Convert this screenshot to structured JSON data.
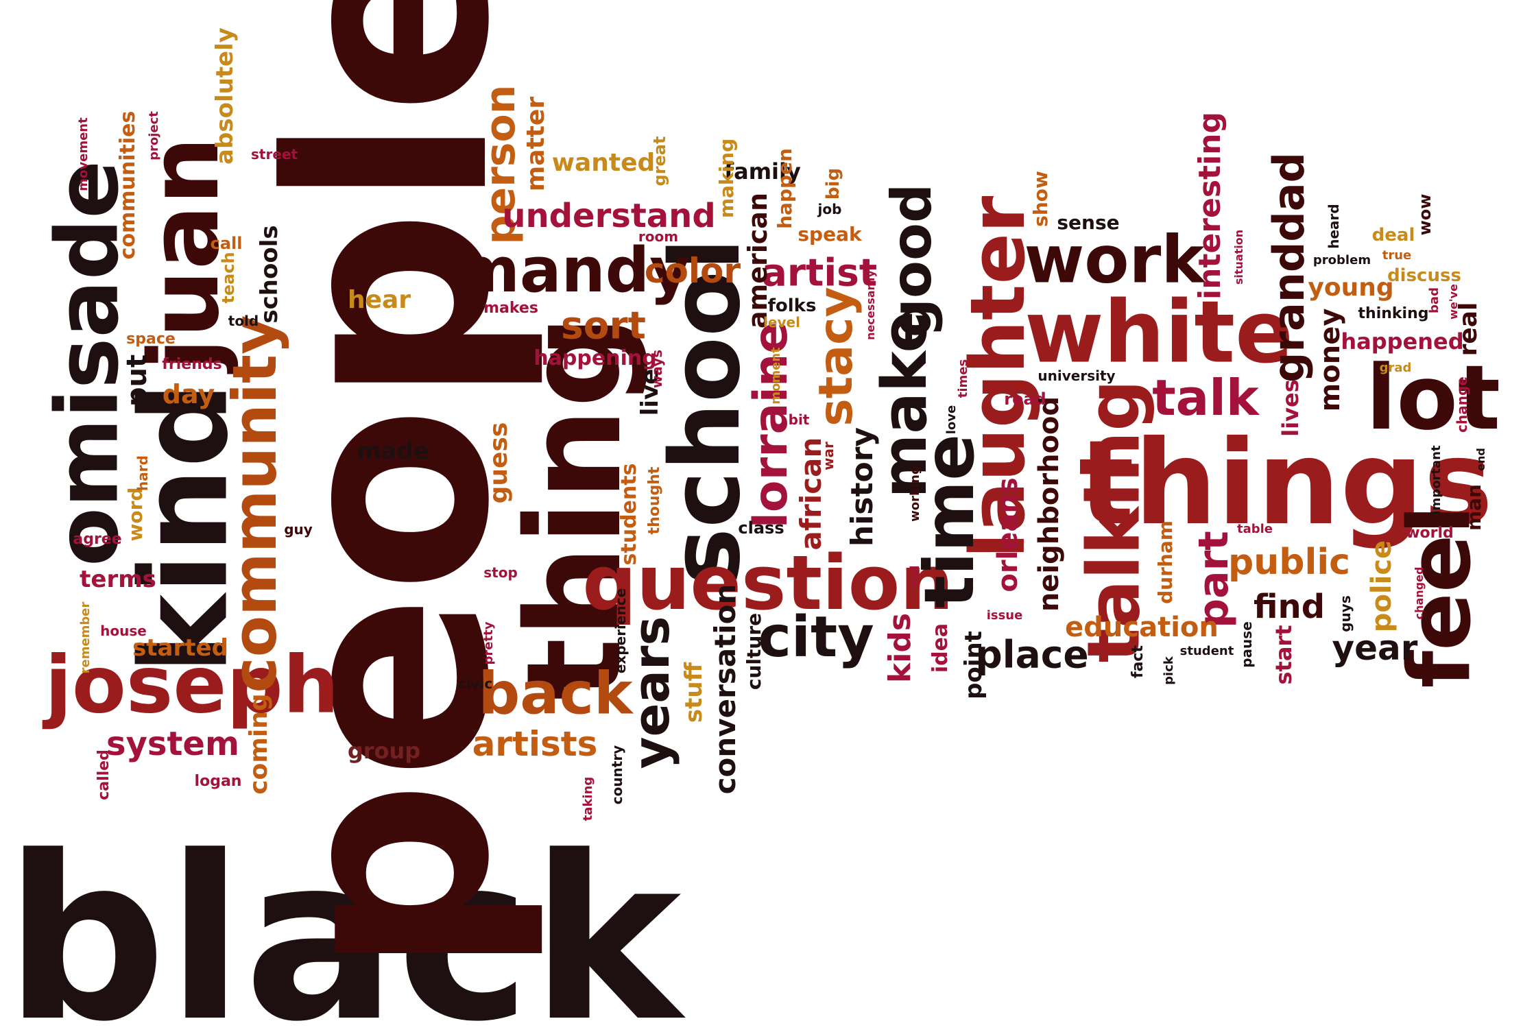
{
  "palette": {
    "dark": "#3d0808",
    "maroon": "#580c0c",
    "brown": "#722020",
    "red": "#9b1c1c",
    "crimson": "#a3123a",
    "rust": "#b34a10",
    "orange": "#c25d12",
    "gold": "#c88a1a",
    "black": "#1e1010"
  },
  "words": [
    {
      "text": "black",
      "color": "black"
    },
    {
      "text": "people",
      "color": "dark"
    },
    {
      "text": "kind",
      "color": "black"
    },
    {
      "text": "juan",
      "color": "dark"
    },
    {
      "text": "omisade",
      "color": "black"
    },
    {
      "text": "joseph",
      "color": "red"
    },
    {
      "text": "community",
      "color": "rust"
    },
    {
      "text": "thing",
      "color": "dark"
    },
    {
      "text": "school",
      "color": "black"
    },
    {
      "text": "question",
      "color": "red"
    },
    {
      "text": "things",
      "color": "red"
    },
    {
      "text": "white",
      "color": "red"
    },
    {
      "text": "laughter",
      "color": "red"
    },
    {
      "text": "talking",
      "color": "red"
    },
    {
      "text": "lot",
      "color": "dark"
    },
    {
      "text": "feel",
      "color": "dark"
    },
    {
      "text": "mandy",
      "color": "dark"
    },
    {
      "text": "work",
      "color": "dark"
    },
    {
      "text": "time",
      "color": "black"
    },
    {
      "text": "make",
      "color": "black"
    },
    {
      "text": "good",
      "color": "black"
    },
    {
      "text": "back",
      "color": "rust"
    },
    {
      "text": "city",
      "color": "black"
    },
    {
      "text": "years",
      "color": "black"
    },
    {
      "text": "talk",
      "color": "crimson"
    },
    {
      "text": "lorraine",
      "color": "crimson"
    },
    {
      "text": "stacy",
      "color": "orange"
    },
    {
      "text": "artist",
      "color": "crimson"
    },
    {
      "text": "person",
      "color": "orange"
    },
    {
      "text": "granddad",
      "color": "dark"
    },
    {
      "text": "understand",
      "color": "crimson"
    },
    {
      "text": "sort",
      "color": "rust"
    },
    {
      "text": "color",
      "color": "rust"
    },
    {
      "text": "artists",
      "color": "orange"
    },
    {
      "text": "system",
      "color": "crimson"
    },
    {
      "text": "place",
      "color": "black"
    },
    {
      "text": "year",
      "color": "black"
    },
    {
      "text": "public",
      "color": "orange"
    },
    {
      "text": "find",
      "color": "dark"
    },
    {
      "text": "part",
      "color": "crimson"
    },
    {
      "text": "history",
      "color": "black"
    },
    {
      "text": "conversation",
      "color": "black"
    },
    {
      "text": "american",
      "color": "dark"
    },
    {
      "text": "african",
      "color": "red"
    },
    {
      "text": "interesting",
      "color": "crimson"
    },
    {
      "text": "neighborhood",
      "color": "dark"
    },
    {
      "text": "orleans",
      "color": "crimson"
    },
    {
      "text": "kids",
      "color": "crimson"
    },
    {
      "text": "education",
      "color": "orange"
    },
    {
      "text": "police",
      "color": "gold"
    },
    {
      "text": "money",
      "color": "dark"
    },
    {
      "text": "young",
      "color": "orange"
    },
    {
      "text": "happened",
      "color": "crimson"
    },
    {
      "text": "real",
      "color": "dark"
    },
    {
      "text": "matter",
      "color": "orange"
    },
    {
      "text": "wanted",
      "color": "gold"
    },
    {
      "text": "absolutely",
      "color": "gold"
    },
    {
      "text": "communities",
      "color": "orange"
    },
    {
      "text": "schools",
      "color": "black"
    },
    {
      "text": "hear",
      "color": "gold"
    },
    {
      "text": "made",
      "color": "black"
    },
    {
      "text": "group",
      "color": "brown"
    },
    {
      "text": "put",
      "color": "black"
    },
    {
      "text": "day",
      "color": "orange"
    },
    {
      "text": "terms",
      "color": "crimson"
    },
    {
      "text": "started",
      "color": "orange"
    },
    {
      "text": "coming",
      "color": "orange"
    },
    {
      "text": "guess",
      "color": "orange"
    },
    {
      "text": "students",
      "color": "orange"
    },
    {
      "text": "stuff",
      "color": "gold"
    },
    {
      "text": "happening",
      "color": "crimson"
    },
    {
      "text": "live",
      "color": "black"
    },
    {
      "text": "family",
      "color": "black"
    },
    {
      "text": "making",
      "color": "gold"
    },
    {
      "text": "happen",
      "color": "orange"
    },
    {
      "text": "speak",
      "color": "orange"
    },
    {
      "text": "folks",
      "color": "black"
    },
    {
      "text": "show",
      "color": "orange"
    },
    {
      "text": "sense",
      "color": "black"
    },
    {
      "text": "lives",
      "color": "crimson"
    },
    {
      "text": "start",
      "color": "crimson"
    },
    {
      "text": "durham",
      "color": "orange"
    },
    {
      "text": "idea",
      "color": "crimson"
    },
    {
      "text": "point",
      "color": "black"
    },
    {
      "text": "deal",
      "color": "gold"
    },
    {
      "text": "discuss",
      "color": "gold"
    },
    {
      "text": "word",
      "color": "gold"
    },
    {
      "text": "culture",
      "color": "black"
    },
    {
      "text": "class",
      "color": "black"
    },
    {
      "text": "big",
      "color": "orange"
    },
    {
      "text": "job",
      "color": "black"
    },
    {
      "text": "room",
      "color": "crimson"
    },
    {
      "text": "street",
      "color": "crimson"
    },
    {
      "text": "great",
      "color": "gold"
    },
    {
      "text": "makes",
      "color": "crimson"
    },
    {
      "text": "teach",
      "color": "gold"
    },
    {
      "text": "call",
      "color": "orange"
    },
    {
      "text": "told",
      "color": "black"
    },
    {
      "text": "space",
      "color": "orange"
    },
    {
      "text": "friends",
      "color": "crimson"
    },
    {
      "text": "agree",
      "color": "crimson"
    },
    {
      "text": "guy",
      "color": "dark"
    },
    {
      "text": "hard",
      "color": "orange"
    },
    {
      "text": "house",
      "color": "crimson"
    },
    {
      "text": "called",
      "color": "crimson"
    },
    {
      "text": "logan",
      "color": "crimson"
    },
    {
      "text": "remember",
      "color": "gold"
    },
    {
      "text": "movement",
      "color": "crimson"
    },
    {
      "text": "project",
      "color": "crimson"
    },
    {
      "text": "stop",
      "color": "crimson"
    },
    {
      "text": "pretty",
      "color": "crimson"
    },
    {
      "text": "civic",
      "color": "black"
    },
    {
      "text": "taking",
      "color": "crimson"
    },
    {
      "text": "country",
      "color": "black"
    },
    {
      "text": "thought",
      "color": "orange"
    },
    {
      "text": "experience",
      "color": "black"
    },
    {
      "text": "ways",
      "color": "crimson"
    },
    {
      "text": "level",
      "color": "gold"
    },
    {
      "text": "moment",
      "color": "gold"
    },
    {
      "text": "bit",
      "color": "crimson"
    },
    {
      "text": "war",
      "color": "red"
    },
    {
      "text": "necessarily",
      "color": "crimson"
    },
    {
      "text": "working",
      "color": "dark"
    },
    {
      "text": "kid",
      "color": "crimson"
    },
    {
      "text": "love",
      "color": "black"
    },
    {
      "text": "times",
      "color": "crimson"
    },
    {
      "text": "read",
      "color": "crimson"
    },
    {
      "text": "university",
      "color": "black"
    },
    {
      "text": "issue",
      "color": "crimson"
    },
    {
      "text": "fact",
      "color": "black"
    },
    {
      "text": "pick",
      "color": "black"
    },
    {
      "text": "student",
      "color": "black"
    },
    {
      "text": "pause",
      "color": "black"
    },
    {
      "text": "table",
      "color": "crimson"
    },
    {
      "text": "situation",
      "color": "crimson"
    },
    {
      "text": "heard",
      "color": "black"
    },
    {
      "text": "problem",
      "color": "black"
    },
    {
      "text": "true",
      "color": "orange"
    },
    {
      "text": "wow",
      "color": "dark"
    },
    {
      "text": "thinking",
      "color": "black"
    },
    {
      "text": "bad",
      "color": "crimson"
    },
    {
      "text": "grad",
      "color": "gold"
    },
    {
      "text": "we've",
      "color": "crimson"
    },
    {
      "text": "change",
      "color": "crimson"
    },
    {
      "text": "important",
      "color": "black"
    },
    {
      "text": "end",
      "color": "black"
    },
    {
      "text": "man",
      "color": "dark"
    },
    {
      "text": "world",
      "color": "crimson"
    },
    {
      "text": "changed",
      "color": "crimson"
    },
    {
      "text": "guys",
      "color": "black"
    }
  ]
}
